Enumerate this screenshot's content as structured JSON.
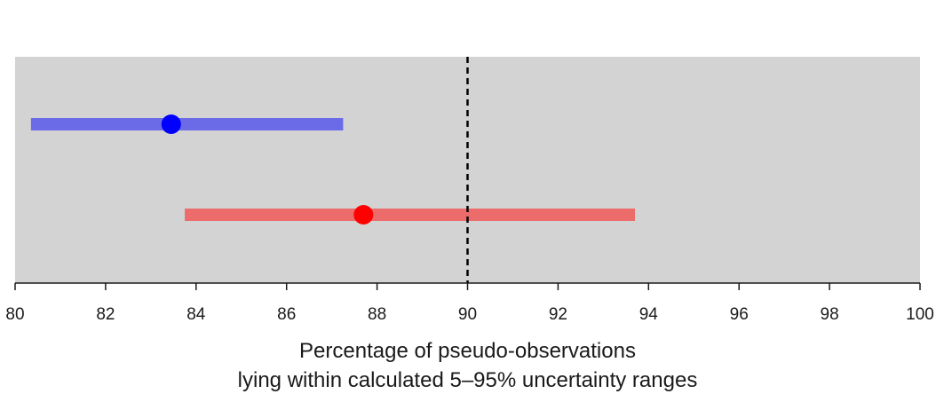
{
  "chart_data": {
    "type": "scatter",
    "xlabel_lines": [
      "Percentage of pseudo-observations",
      "lying within calculated 5–95% uncertainty ranges"
    ],
    "xlim": [
      80,
      100
    ],
    "xticks": [
      80,
      82,
      84,
      86,
      88,
      90,
      92,
      94,
      96,
      98,
      100
    ],
    "xtick_labels": [
      "80",
      "82",
      "84",
      "86",
      "88",
      "90",
      "92",
      "94",
      "96",
      "98",
      "100"
    ],
    "reference_line": {
      "x": 90,
      "style": "dashed",
      "color": "#000000"
    },
    "background_color": "#d3d3d3",
    "series": [
      {
        "point": 83.45,
        "range": [
          80.35,
          87.25
        ],
        "point_color": "#0000ff",
        "range_color": "#6b6be8"
      },
      {
        "point": 87.7,
        "range": [
          83.75,
          93.7
        ],
        "point_color": "#ff0000",
        "range_color": "#ec6b6b"
      }
    ]
  }
}
